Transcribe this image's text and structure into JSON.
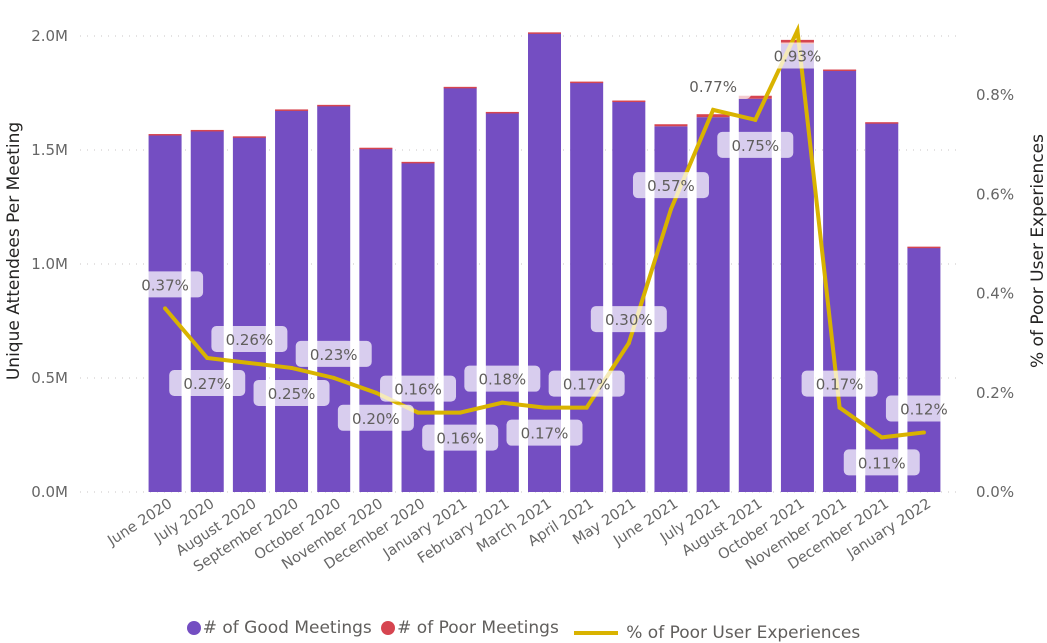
{
  "chart_data": {
    "type": "bar",
    "combo": "stacked-bar-with-line",
    "title": "",
    "xlabel": "",
    "ylabel": "Unique Attendees Per Meeting",
    "y2label": "% of Poor User Experiences",
    "ylim": [
      0,
      2000000
    ],
    "y2lim": [
      0,
      0.92
    ],
    "yticks": [
      {
        "value": 0,
        "label": "0.0M"
      },
      {
        "value": 500000,
        "label": "0.5M"
      },
      {
        "value": 1000000,
        "label": "1.0M"
      },
      {
        "value": 1500000,
        "label": "1.5M"
      },
      {
        "value": 2000000,
        "label": "2.0M"
      }
    ],
    "y2ticks": [
      {
        "value": 0.0,
        "label": "0.0%"
      },
      {
        "value": 0.2,
        "label": "0.2%"
      },
      {
        "value": 0.4,
        "label": "0.4%"
      },
      {
        "value": 0.6,
        "label": "0.6%"
      },
      {
        "value": 0.8,
        "label": "0.8%"
      }
    ],
    "grid": true,
    "legend_position": "bottom-center",
    "categories": [
      "June 2020",
      "July 2020",
      "August 2020",
      "September 2020",
      "October 2020",
      "November 2020",
      "December 2020",
      "January 2021",
      "February 2021",
      "March 2021",
      "April 2021",
      "May 2021",
      "June 2021",
      "July 2021",
      "August 2021",
      "October 2021",
      "November 2021",
      "December 2021",
      "January 2022"
    ],
    "series": [
      {
        "name": "# of Good Meetings",
        "kind": "bar",
        "axis": "left",
        "color": "#744EC2",
        "values": [
          1564000,
          1584000,
          1556000,
          1674000,
          1694000,
          1507000,
          1446000,
          1774000,
          1664000,
          2013000,
          1797000,
          1714000,
          1604000,
          1644000,
          1725000,
          1965000,
          1850000,
          1620000,
          1075000
        ]
      },
      {
        "name": "# of Poor Meetings",
        "kind": "bar",
        "axis": "left",
        "color": "#D64550",
        "values": [
          6000,
          4000,
          4000,
          4000,
          4000,
          3000,
          2000,
          3000,
          3000,
          3000,
          3000,
          3000,
          9000,
          13000,
          13000,
          18000,
          3000,
          2000,
          1000
        ]
      },
      {
        "name": "% of Poor User Experiences",
        "kind": "line",
        "axis": "right",
        "color": "#D9B300",
        "values": [
          0.37,
          0.27,
          0.26,
          0.25,
          0.23,
          0.2,
          0.16,
          0.16,
          0.18,
          0.17,
          0.17,
          0.3,
          0.57,
          0.77,
          0.75,
          0.93,
          0.17,
          0.11,
          0.12
        ],
        "labels": [
          "0.37%",
          "0.27%",
          "0.26%",
          "0.25%",
          "0.23%",
          "0.20%",
          "0.16%",
          "0.16%",
          "0.18%",
          "0.17%",
          "0.17%",
          "0.30%",
          "0.57%",
          "0.77%",
          "0.75%",
          "0.93%",
          "0.17%",
          "0.11%",
          "0.12%"
        ],
        "label_side": [
          "above",
          "below",
          "above",
          "below",
          "above",
          "below",
          "above",
          "below",
          "above",
          "below",
          "above",
          "above",
          "above",
          "above",
          "below",
          "below",
          "above",
          "below",
          "above"
        ]
      }
    ]
  },
  "legend": {
    "items": [
      {
        "label": "# of Good Meetings",
        "symbol": "dot",
        "color": "#744EC2"
      },
      {
        "label": "# of Poor Meetings",
        "symbol": "dot",
        "color": "#D64550"
      },
      {
        "label": "% of Poor User Experiences",
        "symbol": "line",
        "color": "#D9B300"
      }
    ]
  }
}
